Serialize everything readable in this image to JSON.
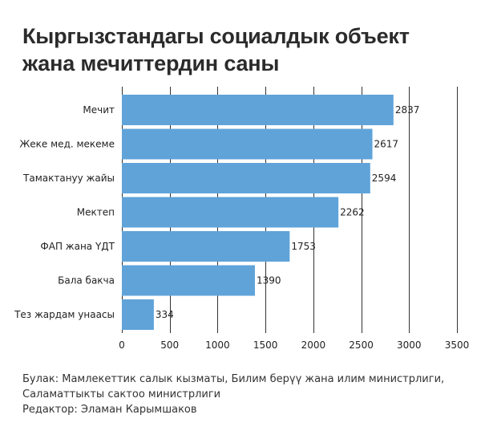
{
  "title_lines": [
    "Кыргызстандагы социалдык объект",
    "жана мечиттердин саны"
  ],
  "footer_lines": [
    "Булак: Мамлекеттик салык кызматы, Билим берүү жана илим министрлиги,",
    "Саламаттыкты сактоо министрлиги",
    "Редактор: Эламан Карымшаков"
  ],
  "colors": {
    "bar": "#5fa3d9",
    "gridline": "#333333"
  },
  "chart_data": {
    "type": "bar",
    "orientation": "horizontal",
    "title": "Кыргызстандагы социалдык объект жана мечиттердин саны",
    "categories": [
      "Мечит",
      "Жеке мед. мекеме",
      "Тамактануу жайы",
      "Мектеп",
      "ФАП жана ҮДТ",
      "Бала бакча",
      "Тез жардам унаасы"
    ],
    "values": [
      2837,
      2617,
      2594,
      2262,
      1753,
      1390,
      334
    ],
    "xlim": [
      0,
      3500
    ],
    "x_ticks": [
      0,
      500,
      1000,
      1500,
      2000,
      2500,
      3000,
      3500
    ],
    "grid": "vertical",
    "data_labels": true
  }
}
